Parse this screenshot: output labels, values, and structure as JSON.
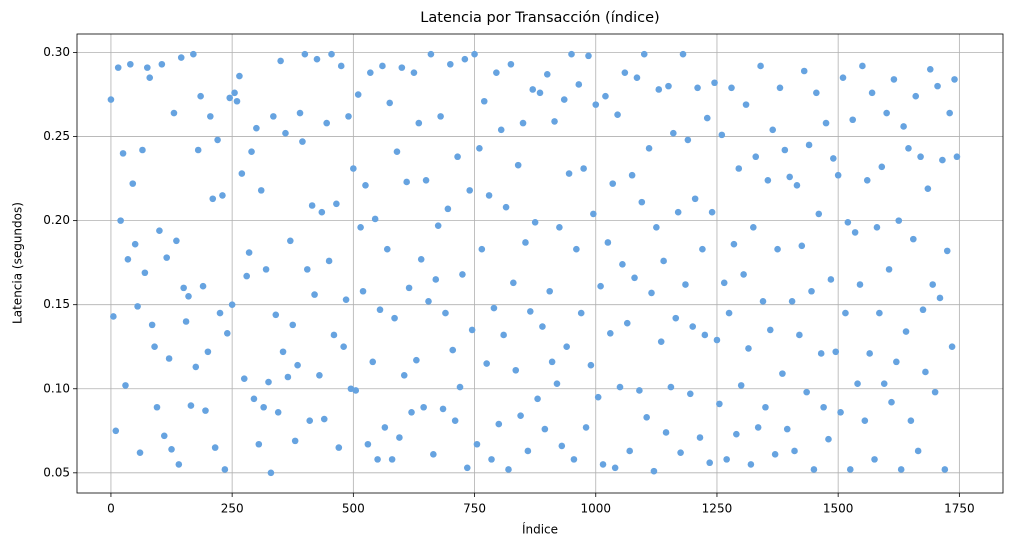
{
  "chart_data": {
    "type": "scatter",
    "title": "Latencia por Transacción (índice)",
    "x_label": "Índice",
    "y_label": "Latencia (segundos)",
    "color": "#66a3e0",
    "grid": true,
    "xlim": [
      -70,
      1840
    ],
    "ylim": [
      0.038,
      0.311
    ],
    "xticks": [
      0,
      250,
      500,
      750,
      1000,
      1250,
      1500,
      1750
    ],
    "yticks": [
      0.05,
      {
        "value": 0.1,
        "label": "0.10"
      },
      0.15,
      {
        "value": 0.2,
        "label": "0.20"
      },
      0.25,
      {
        "value": 0.3,
        "label": "0.30"
      }
    ],
    "x": [
      0,
      5,
      10,
      15,
      20,
      25,
      30,
      35,
      40,
      45,
      50,
      55,
      60,
      65,
      70,
      75,
      80,
      85,
      90,
      95,
      100,
      105,
      110,
      115,
      120,
      125,
      130,
      135,
      140,
      145,
      150,
      155,
      160,
      165,
      170,
      175,
      180,
      185,
      190,
      195,
      200,
      205,
      210,
      215,
      220,
      225,
      230,
      235,
      240,
      245,
      250,
      255,
      260,
      265,
      270,
      275,
      280,
      285,
      290,
      295,
      300,
      305,
      310,
      315,
      320,
      325,
      330,
      335,
      340,
      345,
      350,
      355,
      360,
      365,
      370,
      375,
      380,
      385,
      390,
      395,
      400,
      405,
      410,
      415,
      420,
      425,
      430,
      435,
      440,
      445,
      450,
      455,
      460,
      465,
      470,
      475,
      480,
      485,
      490,
      495,
      500,
      505,
      510,
      515,
      520,
      525,
      530,
      535,
      540,
      545,
      550,
      555,
      560,
      565,
      570,
      575,
      580,
      585,
      590,
      595,
      600,
      605,
      610,
      615,
      620,
      625,
      630,
      635,
      640,
      645,
      650,
      655,
      660,
      665,
      670,
      675,
      680,
      685,
      690,
      695,
      700,
      705,
      710,
      715,
      720,
      725,
      730,
      735,
      740,
      745,
      750,
      755,
      760,
      765,
      770,
      775,
      780,
      785,
      790,
      795,
      800,
      805,
      810,
      815,
      820,
      825,
      830,
      835,
      840,
      845,
      850,
      855,
      860,
      865,
      870,
      875,
      880,
      885,
      890,
      895,
      900,
      905,
      910,
      915,
      920,
      925,
      930,
      935,
      940,
      945,
      950,
      955,
      960,
      965,
      970,
      975,
      980,
      985,
      990,
      995,
      1000,
      1005,
      1010,
      1015,
      1020,
      1025,
      1030,
      1035,
      1040,
      1045,
      1050,
      1055,
      1060,
      1065,
      1070,
      1075,
      1080,
      1085,
      1090,
      1095,
      1100,
      1105,
      1110,
      1115,
      1120,
      1125,
      1130,
      1135,
      1140,
      1145,
      1150,
      1155,
      1160,
      1165,
      1170,
      1175,
      1180,
      1185,
      1190,
      1195,
      1200,
      1205,
      1210,
      1215,
      1220,
      1225,
      1230,
      1235,
      1240,
      1245,
      1250,
      1255,
      1260,
      1265,
      1270,
      1275,
      1280,
      1285,
      1290,
      1295,
      1300,
      1305,
      1310,
      1315,
      1320,
      1325,
      1330,
      1335,
      1340,
      1345,
      1350,
      1355,
      1360,
      1365,
      1370,
      1375,
      1380,
      1385,
      1390,
      1395,
      1400,
      1405,
      1410,
      1415,
      1420,
      1425,
      1430,
      1435,
      1440,
      1445,
      1450,
      1455,
      1460,
      1465,
      1470,
      1475,
      1480,
      1485,
      1490,
      1495,
      1500,
      1505,
      1510,
      1515,
      1520,
      1525,
      1530,
      1535,
      1540,
      1545,
      1550,
      1555,
      1560,
      1565,
      1570,
      1575,
      1580,
      1585,
      1590,
      1595,
      1600,
      1605,
      1610,
      1615,
      1620,
      1625,
      1630,
      1635,
      1640,
      1645,
      1650,
      1655,
      1660,
      1665,
      1670,
      1675,
      1680,
      1685,
      1690,
      1695,
      1700,
      1705,
      1710,
      1715,
      1720,
      1725,
      1730,
      1735,
      1740,
      1745
    ],
    "values": [
      0.272,
      0.143,
      0.075,
      0.291,
      0.2,
      0.24,
      0.102,
      0.177,
      0.293,
      0.222,
      0.186,
      0.149,
      0.062,
      0.242,
      0.169,
      0.291,
      0.285,
      0.138,
      0.125,
      0.089,
      0.194,
      0.293,
      0.072,
      0.178,
      0.118,
      0.064,
      0.264,
      0.188,
      0.055,
      0.297,
      0.16,
      0.14,
      0.155,
      0.09,
      0.299,
      0.113,
      0.242,
      0.274,
      0.161,
      0.087,
      0.122,
      0.262,
      0.213,
      0.065,
      0.248,
      0.145,
      0.215,
      0.052,
      0.133,
      0.273,
      0.15,
      0.276,
      0.271,
      0.286,
      0.228,
      0.106,
      0.167,
      0.181,
      0.241,
      0.094,
      0.255,
      0.067,
      0.218,
      0.089,
      0.171,
      0.104,
      0.05,
      0.262,
      0.144,
      0.086,
      0.295,
      0.122,
      0.252,
      0.107,
      0.188,
      0.138,
      0.069,
      0.114,
      0.264,
      0.247,
      0.299,
      0.171,
      0.081,
      0.209,
      0.156,
      0.296,
      0.108,
      0.205,
      0.082,
      0.258,
      0.176,
      0.299,
      0.132,
      0.21,
      0.065,
      0.292,
      0.125,
      0.153,
      0.262,
      0.1,
      0.231,
      0.099,
      0.275,
      0.196,
      0.158,
      0.221,
      0.067,
      0.288,
      0.116,
      0.201,
      0.058,
      0.147,
      0.292,
      0.077,
      0.183,
      0.27,
      0.058,
      0.142,
      0.241,
      0.071,
      0.291,
      0.108,
      0.223,
      0.16,
      0.086,
      0.288,
      0.117,
      0.258,
      0.177,
      0.089,
      0.224,
      0.152,
      0.299,
      0.061,
      0.165,
      0.197,
      0.262,
      0.088,
      0.145,
      0.207,
      0.293,
      0.123,
      0.081,
      0.238,
      0.101,
      0.168,
      0.296,
      0.053,
      0.218,
      0.135,
      0.299,
      0.067,
      0.243,
      0.183,
      0.271,
      0.115,
      0.215,
      0.058,
      0.148,
      0.288,
      0.079,
      0.254,
      0.132,
      0.208,
      0.052,
      0.293,
      0.163,
      0.111,
      0.233,
      0.084,
      0.258,
      0.187,
      0.063,
      0.146,
      0.278,
      0.199,
      0.094,
      0.276,
      0.137,
      0.076,
      0.287,
      0.158,
      0.116,
      0.259,
      0.103,
      0.196,
      0.066,
      0.272,
      0.125,
      0.228,
      0.299,
      0.058,
      0.183,
      0.281,
      0.145,
      0.231,
      0.077,
      0.298,
      0.114,
      0.204,
      0.269,
      0.095,
      0.161,
      0.055,
      0.274,
      0.187,
      0.133,
      0.222,
      0.053,
      0.263,
      0.101,
      0.174,
      0.288,
      0.139,
      0.063,
      0.227,
      0.166,
      0.285,
      0.099,
      0.211,
      0.299,
      0.083,
      0.243,
      0.157,
      0.051,
      0.196,
      0.278,
      0.128,
      0.176,
      0.074,
      0.28,
      0.101,
      0.252,
      0.142,
      0.205,
      0.062,
      0.299,
      0.162,
      0.248,
      0.097,
      0.137,
      0.213,
      0.279,
      0.071,
      0.183,
      0.132,
      0.261,
      0.056,
      0.205,
      0.282,
      0.129,
      0.091,
      0.251,
      0.163,
      0.058,
      0.145,
      0.279,
      0.186,
      0.073,
      0.231,
      0.102,
      0.168,
      0.269,
      0.124,
      0.055,
      0.196,
      0.238,
      0.077,
      0.292,
      0.152,
      0.089,
      0.224,
      0.135,
      0.254,
      0.061,
      0.183,
      0.279,
      0.109,
      0.242,
      0.076,
      0.226,
      0.152,
      0.063,
      0.221,
      0.132,
      0.185,
      0.289,
      0.098,
      0.245,
      0.158,
      0.052,
      0.276,
      0.204,
      0.121,
      0.089,
      0.258,
      0.07,
      0.165,
      0.237,
      0.122,
      0.227,
      0.086,
      0.285,
      0.145,
      0.199,
      0.052,
      0.26,
      0.193,
      0.103,
      0.162,
      0.292,
      0.081,
      0.224,
      0.121,
      0.276,
      0.058,
      0.196,
      0.145,
      0.232,
      0.103,
      0.264,
      0.171,
      0.092,
      0.284,
      0.116,
      0.2,
      0.052,
      0.256,
      0.134,
      0.243,
      0.081,
      0.189,
      0.274,
      0.063,
      0.238,
      0.147,
      0.11,
      0.219,
      0.29,
      0.162,
      0.098,
      0.28,
      0.154,
      0.236,
      0.052,
      0.182,
      0.264,
      0.125,
      0.284,
      0.238
    ]
  }
}
